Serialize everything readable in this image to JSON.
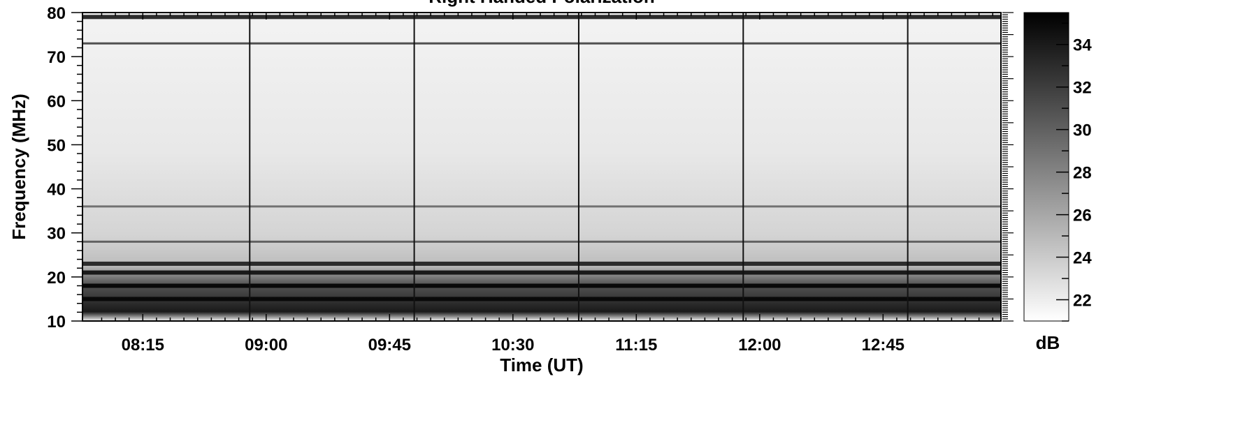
{
  "chart_data": {
    "type": "heatmap",
    "title": "Right Handed Polarization",
    "xlabel": "Time (UT)",
    "ylabel": "Frequency (MHz)",
    "colorbar_label": "dB",
    "x_ticks": [
      "08:15",
      "09:00",
      "09:45",
      "10:30",
      "11:15",
      "12:00",
      "12:45"
    ],
    "x_tick_minutes": [
      495,
      540,
      585,
      630,
      675,
      720,
      765
    ],
    "xlim_minutes": [
      473,
      808
    ],
    "y_ticks": [
      10,
      20,
      30,
      40,
      50,
      60,
      70,
      80
    ],
    "ylim": [
      10,
      80
    ],
    "colorbar_ticks": [
      22,
      24,
      26,
      28,
      30,
      32,
      34
    ],
    "colorbar_range": [
      21,
      35.5
    ],
    "colormap": [
      "#ffffff",
      "#000000"
    ],
    "background_level_db": 22,
    "calibration_times_minutes": [
      534,
      594,
      654,
      714,
      774
    ],
    "interference_bands": [
      {
        "freq_mhz": 79,
        "level_db": 33
      },
      {
        "freq_mhz": 73,
        "level_db": 31
      },
      {
        "freq_mhz": 36,
        "level_db": 29
      },
      {
        "freq_mhz": 28,
        "level_db": 30
      },
      {
        "freq_mhz": 23,
        "level_db": 33
      },
      {
        "freq_mhz": 21,
        "level_db": 34
      },
      {
        "freq_mhz": 18,
        "level_db": 35
      },
      {
        "freq_mhz": 15,
        "level_db": 35
      }
    ]
  }
}
